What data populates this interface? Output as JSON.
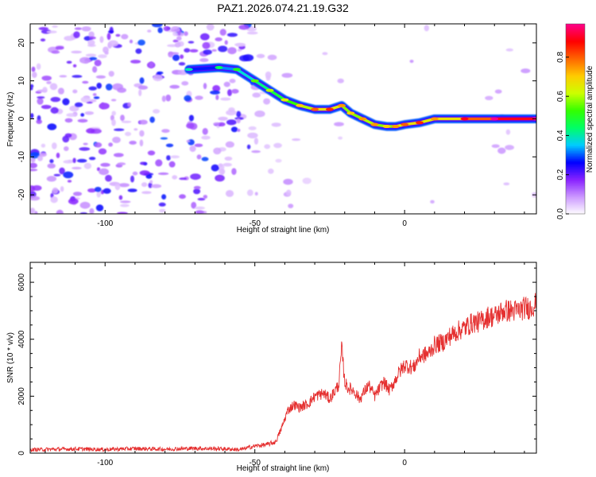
{
  "title": "PAZ1.2026.074.21.19.G32",
  "chart_data": [
    {
      "type": "heatmap",
      "name": "spectrogram",
      "xlabel": "Height of straight line (km)",
      "ylabel": "Frequency (Hz)",
      "xlim": [
        -125,
        44
      ],
      "ylim": [
        -25,
        25
      ],
      "xticks": [
        -100,
        -50,
        0
      ],
      "xtick_labels": [
        "-100",
        "-50",
        "0"
      ],
      "yticks": [
        -20,
        -10,
        0,
        10,
        20
      ],
      "ytick_labels": [
        "-20",
        "-10",
        "0",
        "10",
        "20"
      ],
      "colorbar": {
        "label": "Normalized spectral amplitude",
        "range": [
          0,
          0.97
        ],
        "ticks": [
          0,
          0.2,
          0.4,
          0.6,
          0.8
        ],
        "tick_labels": [
          "0.0",
          "0.2",
          "0.4",
          "0.6",
          "0.8"
        ],
        "colors": [
          "#ffffff",
          "#cc99ff",
          "#8822ff",
          "#0000ff",
          "#00ccff",
          "#00ff66",
          "#33ff00",
          "#ccff00",
          "#ffcc00",
          "#ff6600",
          "#ff0000",
          "#ff0088"
        ]
      },
      "ridge": {
        "x": [
          -72,
          -62,
          -56,
          -50,
          -45,
          -40,
          -35,
          -30,
          -25,
          -21,
          -18,
          -14,
          -10,
          -6,
          -3,
          0,
          5,
          10,
          20,
          30,
          44
        ],
        "y": [
          13,
          13.5,
          13,
          10,
          7.5,
          5,
          3.5,
          2.5,
          2.5,
          3.5,
          1.5,
          0,
          -1.5,
          -2,
          -2,
          -1.5,
          -1,
          0,
          0,
          0,
          0
        ],
        "amplitude": [
          0.25,
          0.3,
          0.35,
          0.4,
          0.45,
          0.5,
          0.55,
          0.65,
          0.7,
          0.6,
          0.55,
          0.6,
          0.6,
          0.55,
          0.6,
          0.65,
          0.7,
          0.6,
          0.75,
          0.85,
          0.95
        ]
      },
      "noise_region": {
        "x_from": -125,
        "x_to": -50,
        "level": "high"
      }
    },
    {
      "type": "line",
      "name": "snr",
      "xlabel": "Height of straight line (km)",
      "ylabel": "SNR (10 * v/v)",
      "xlim": [
        -125,
        44
      ],
      "ylim": [
        0,
        6700
      ],
      "xticks": [
        -100,
        -50,
        0
      ],
      "xtick_labels": [
        "-100",
        "-50",
        "0"
      ],
      "yticks": [
        0,
        2000,
        4000,
        6000
      ],
      "ytick_labels": [
        "0",
        "2000",
        "4000",
        "6000"
      ],
      "color": "#e53030",
      "series": [
        {
          "name": "SNR",
          "x": [
            -125,
            -110,
            -100,
            -90,
            -80,
            -70,
            -60,
            -55,
            -50,
            -46,
            -43,
            -41,
            -39,
            -37,
            -35,
            -32,
            -30,
            -27,
            -25,
            -22,
            -21,
            -20,
            -19,
            -17,
            -15,
            -12,
            -10,
            -7,
            -5,
            -2,
            0,
            3,
            5,
            8,
            10,
            13,
            15,
            18,
            20,
            23,
            25,
            28,
            30,
            33,
            35,
            38,
            40,
            42,
            44
          ],
          "y": [
            120,
            150,
            130,
            160,
            140,
            170,
            150,
            120,
            250,
            300,
            400,
            900,
            1500,
            1700,
            1600,
            1750,
            2000,
            2100,
            1900,
            2400,
            3700,
            2500,
            2300,
            2200,
            1900,
            2400,
            2000,
            2500,
            2200,
            2800,
            3100,
            3000,
            3400,
            3500,
            3800,
            3900,
            4100,
            4300,
            4400,
            4600,
            4600,
            4800,
            4800,
            5000,
            5000,
            5000,
            5100,
            5100,
            5300
          ]
        }
      ]
    }
  ]
}
